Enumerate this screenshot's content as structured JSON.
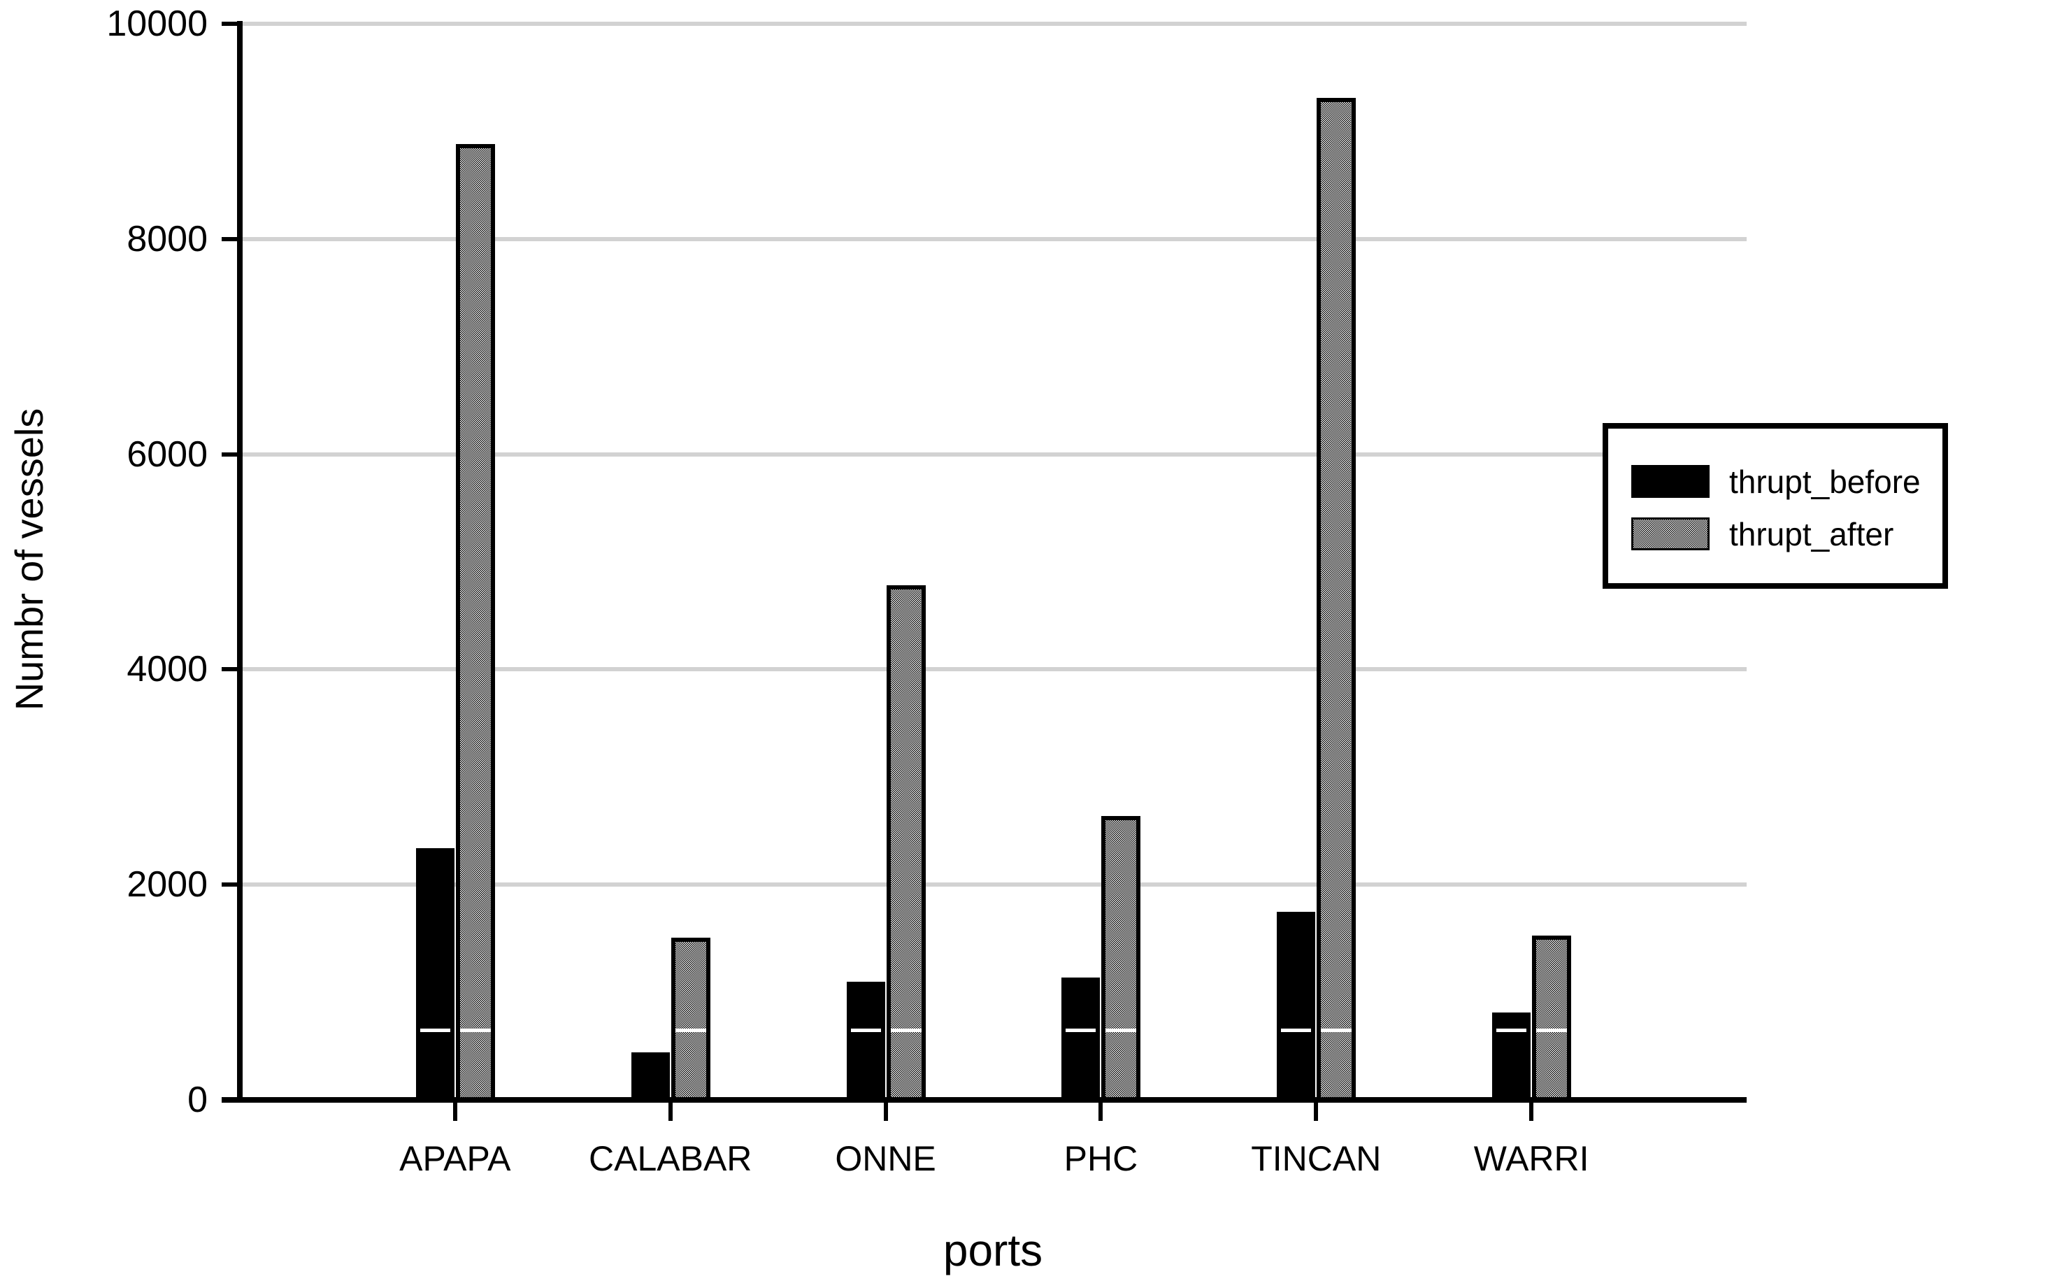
{
  "chart_data": {
    "type": "bar",
    "title": "",
    "xlabel": "ports",
    "ylabel": "Numbr of vessels",
    "categories": [
      "APAPA",
      "CALABAR",
      "ONNE",
      "PHC",
      "TINCAN",
      "WARRI"
    ],
    "series": [
      {
        "name": "thrupt_before",
        "color": "#000000",
        "fill": "solid",
        "values": [
          2340,
          440,
          1100,
          1140,
          1750,
          810
        ]
      },
      {
        "name": "thrupt_after",
        "color": "#9a9a9a",
        "fill": "checker-dither",
        "values": [
          8880,
          1510,
          4780,
          2640,
          9310,
          1530
        ]
      }
    ],
    "ylim": [
      0,
      10000
    ],
    "yticks": [
      0,
      2000,
      4000,
      6000,
      8000,
      10000
    ],
    "grid": "horizontal",
    "legend_position": "right-inside"
  },
  "legend": {
    "items": [
      {
        "label": "thrupt_before"
      },
      {
        "label": "thrupt_after"
      }
    ]
  },
  "colors": {
    "background": "#ffffff",
    "axis": "#000000",
    "gridline": "#d2d2d2",
    "bar_before": "#000000",
    "bar_after_pattern_avg": "#9a9a9a"
  }
}
